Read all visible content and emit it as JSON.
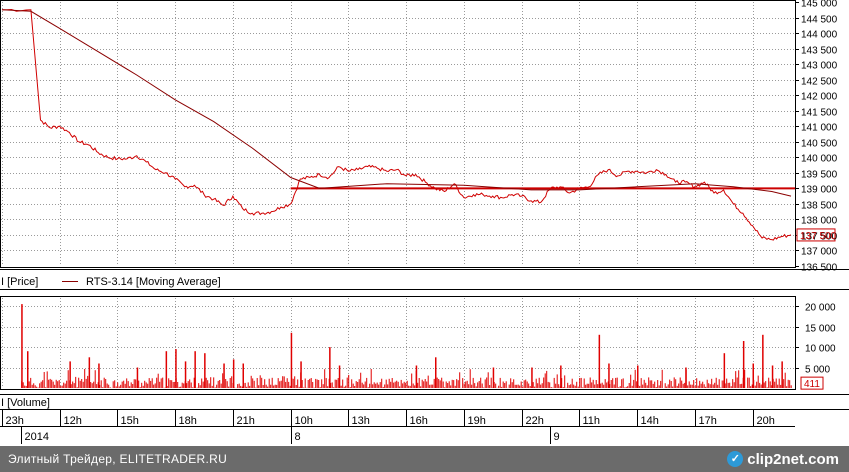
{
  "chart_data": [
    {
      "type": "line",
      "panel": "price",
      "legend": [
        "I [Price]",
        "RTS-3.14 [Moving Average]"
      ],
      "ylim": [
        136500,
        145000
      ],
      "yticks": [
        "145 000",
        "144 500",
        "144 000",
        "143 500",
        "143 000",
        "142 500",
        "142 000",
        "141 500",
        "141 000",
        "140 500",
        "140 000",
        "139 500",
        "139 000",
        "138 500",
        "138 000",
        "137 500",
        "137 000",
        "136 500"
      ],
      "last_value_label": "137 500",
      "horizontal_line": 139000,
      "series": [
        {
          "role": "price",
          "color": "#d00000",
          "points": [
            [
              0,
              144750
            ],
            [
              3,
              144750
            ],
            [
              4,
              141200
            ],
            [
              5,
              140950
            ],
            [
              6,
              141000
            ],
            [
              7,
              140800
            ],
            [
              8,
              140500
            ],
            [
              9,
              140400
            ],
            [
              10,
              140150
            ],
            [
              11,
              140000
            ],
            [
              12,
              139950
            ],
            [
              13,
              139950
            ],
            [
              14,
              140050
            ],
            [
              15,
              139850
            ],
            [
              16,
              139600
            ],
            [
              17,
              139500
            ],
            [
              18,
              139300
            ],
            [
              19,
              139050
            ],
            [
              20,
              139100
            ],
            [
              21,
              138800
            ],
            [
              22,
              138650
            ],
            [
              23,
              138450
            ],
            [
              24,
              138750
            ],
            [
              25,
              138350
            ],
            [
              26,
              138200
            ],
            [
              27,
              138200
            ],
            [
              28,
              138250
            ],
            [
              29,
              138400
            ],
            [
              30,
              138500
            ],
            [
              31,
              139300
            ],
            [
              32,
              139350
            ],
            [
              33,
              139450
            ],
            [
              34,
              139350
            ],
            [
              35,
              139700
            ],
            [
              36,
              139550
            ],
            [
              37,
              139600
            ],
            [
              38,
              139700
            ],
            [
              39,
              139650
            ],
            [
              40,
              139550
            ],
            [
              41,
              139600
            ],
            [
              42,
              139400
            ],
            [
              43,
              139450
            ],
            [
              44,
              139200
            ],
            [
              45,
              139000
            ],
            [
              46,
              138900
            ],
            [
              47,
              139150
            ],
            [
              48,
              138700
            ],
            [
              49,
              138800
            ],
            [
              50,
              138800
            ],
            [
              51,
              138750
            ],
            [
              52,
              138700
            ],
            [
              53,
              138800
            ],
            [
              54,
              138750
            ],
            [
              55,
              138600
            ],
            [
              56,
              138550
            ],
            [
              57,
              139000
            ],
            [
              58,
              139050
            ],
            [
              59,
              138850
            ],
            [
              60,
              139000
            ],
            [
              61,
              139050
            ],
            [
              62,
              139450
            ],
            [
              63,
              139600
            ],
            [
              64,
              139400
            ],
            [
              65,
              139550
            ],
            [
              66,
              139550
            ],
            [
              67,
              139500
            ],
            [
              68,
              139600
            ],
            [
              69,
              139450
            ],
            [
              70,
              139200
            ],
            [
              71,
              139200
            ],
            [
              72,
              139050
            ],
            [
              73,
              139200
            ],
            [
              74,
              138850
            ],
            [
              75,
              138950
            ],
            [
              76,
              138500
            ],
            [
              77,
              138200
            ],
            [
              78,
              137800
            ],
            [
              79,
              137400
            ],
            [
              80,
              137350
            ],
            [
              81,
              137450
            ],
            [
              82,
              137500
            ]
          ]
        },
        {
          "role": "moving-average",
          "name": "RTS-3.14 [Moving Average]",
          "color": "#8b0000",
          "points": [
            [
              0,
              144750
            ],
            [
              3,
              144700
            ],
            [
              6,
              144150
            ],
            [
              10,
              143400
            ],
            [
              14,
              142650
            ],
            [
              18,
              141850
            ],
            [
              22,
              141150
            ],
            [
              26,
              140300
            ],
            [
              30,
              139350
            ],
            [
              33,
              139000
            ],
            [
              40,
              139150
            ],
            [
              48,
              139100
            ],
            [
              55,
              138950
            ],
            [
              60,
              138950
            ],
            [
              66,
              139050
            ],
            [
              72,
              139150
            ],
            [
              76,
              139050
            ],
            [
              80,
              138900
            ],
            [
              82,
              138750
            ]
          ]
        }
      ]
    },
    {
      "type": "bar",
      "panel": "volume",
      "legend": [
        "I [Volume]"
      ],
      "ylim": [
        0,
        22000
      ],
      "yticks": [
        "20 000",
        "15 000",
        "10 000",
        "5 000"
      ],
      "last_value_label": "411",
      "color": "#e00000",
      "spikes": [
        [
          2,
          20500
        ],
        [
          2.6,
          9000
        ],
        [
          7,
          6500
        ],
        [
          9,
          7500
        ],
        [
          10,
          6000
        ],
        [
          14,
          5000
        ],
        [
          17,
          9000
        ],
        [
          18,
          9500
        ],
        [
          19,
          6500
        ],
        [
          20,
          9000
        ],
        [
          21,
          8500
        ],
        [
          23,
          6000
        ],
        [
          24,
          7000
        ],
        [
          25,
          6000
        ],
        [
          30,
          13500
        ],
        [
          31,
          6500
        ],
        [
          34,
          10000
        ],
        [
          35,
          5500
        ],
        [
          43,
          5500
        ],
        [
          45,
          7500
        ],
        [
          51,
          5000
        ],
        [
          55,
          5000
        ],
        [
          58,
          5500
        ],
        [
          62,
          13000
        ],
        [
          63,
          6000
        ],
        [
          66,
          5500
        ],
        [
          71,
          5000
        ],
        [
          75,
          8500
        ],
        [
          77,
          11500
        ],
        [
          78,
          6000
        ],
        [
          79,
          13000
        ],
        [
          80,
          5500
        ],
        [
          81,
          6500
        ]
      ],
      "baseline_max": 2600
    }
  ],
  "x_axis": {
    "time_labels": [
      {
        "label": "23h",
        "x": 0
      },
      {
        "label": "12h",
        "x": 6
      },
      {
        "label": "15h",
        "x": 12
      },
      {
        "label": "18h",
        "x": 18
      },
      {
        "label": "21h",
        "x": 24
      },
      {
        "label": "10h",
        "x": 30
      },
      {
        "label": "13h",
        "x": 36
      },
      {
        "label": "16h",
        "x": 42
      },
      {
        "label": "19h",
        "x": 48
      },
      {
        "label": "22h",
        "x": 54
      },
      {
        "label": "11h",
        "x": 60
      },
      {
        "label": "14h",
        "x": 66
      },
      {
        "label": "17h",
        "x": 72
      },
      {
        "label": "20h",
        "x": 78
      }
    ],
    "date_labels": [
      {
        "label": "2014",
        "x": 2
      },
      {
        "label": "8",
        "x": 30
      },
      {
        "label": "9",
        "x": 57
      }
    ]
  },
  "footer": {
    "text": "Элитный Трейдер, ELITETRADER.RU",
    "logo_mark": "✓",
    "logo_text": "clip2net.com"
  }
}
